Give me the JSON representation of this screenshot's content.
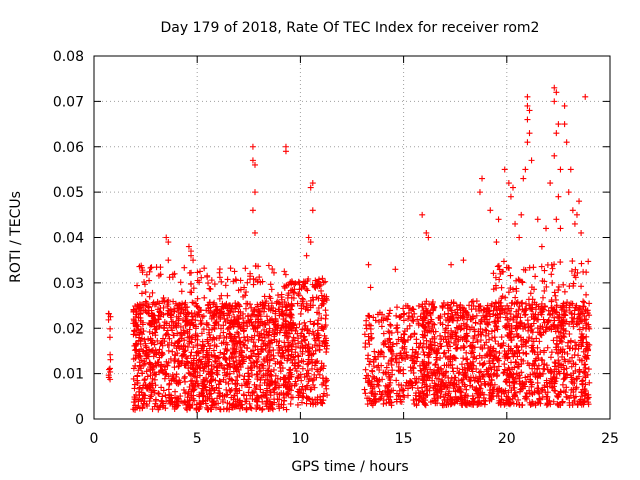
{
  "chart_data": {
    "type": "scatter",
    "title": "Day 179 of 2018, Rate Of TEC Index for receiver rom2",
    "xlabel": "GPS time / hours",
    "ylabel": "ROTI / TECUs",
    "xlim": [
      0,
      25
    ],
    "ylim": [
      0,
      0.08
    ],
    "grid": true,
    "marker": "+",
    "marker_color": "#ff0000",
    "x_ticks": [
      {
        "value": 0,
        "label": "0"
      },
      {
        "value": 5,
        "label": "5"
      },
      {
        "value": 10,
        "label": "10"
      },
      {
        "value": 15,
        "label": "15"
      },
      {
        "value": 20,
        "label": "20"
      },
      {
        "value": 25,
        "label": "25"
      }
    ],
    "y_ticks": [
      {
        "value": 0,
        "label": "0"
      },
      {
        "value": 0.01,
        "label": "0.01"
      },
      {
        "value": 0.02,
        "label": "0.02"
      },
      {
        "value": 0.03,
        "label": "0.03"
      },
      {
        "value": 0.04,
        "label": "0.04"
      },
      {
        "value": 0.05,
        "label": "0.05"
      },
      {
        "value": 0.06,
        "label": "0.06"
      },
      {
        "value": 0.07,
        "label": "0.07"
      },
      {
        "value": 0.08,
        "label": "0.08"
      }
    ],
    "series": [
      {
        "name": "ROTI",
        "description": "dense clusters of ROTI samples per time block",
        "clusters": [
          {
            "x": [
              0.7,
              0.8
            ],
            "y": [
              0.007,
              0.026
            ],
            "n": 14
          },
          {
            "x": [
              1.9,
              9.6
            ],
            "y": [
              0.002,
              0.026
            ],
            "n": 1400
          },
          {
            "x": [
              2.0,
              9.6
            ],
            "y": [
              0.02,
              0.034
            ],
            "n": 220
          },
          {
            "x": [
              9.4,
              11.3
            ],
            "y": [
              0.003,
              0.031
            ],
            "n": 320
          },
          {
            "x": [
              13.1,
              14.5
            ],
            "y": [
              0.003,
              0.024
            ],
            "n": 170
          },
          {
            "x": [
              14.6,
              16.0
            ],
            "y": [
              0.003,
              0.025
            ],
            "n": 170
          },
          {
            "x": [
              15.9,
              18.9
            ],
            "y": [
              0.003,
              0.026
            ],
            "n": 560
          },
          {
            "x": [
              18.9,
              24.0
            ],
            "y": [
              0.003,
              0.026
            ],
            "n": 800
          },
          {
            "x": [
              19.0,
              24.0
            ],
            "y": [
              0.02,
              0.035
            ],
            "n": 160
          }
        ],
        "outliers": [
          {
            "x": 3.5,
            "y": 0.04
          },
          {
            "x": 3.6,
            "y": 0.039
          },
          {
            "x": 3.6,
            "y": 0.035
          },
          {
            "x": 4.6,
            "y": 0.038
          },
          {
            "x": 4.7,
            "y": 0.037
          },
          {
            "x": 4.7,
            "y": 0.036
          },
          {
            "x": 4.8,
            "y": 0.035
          },
          {
            "x": 7.7,
            "y": 0.06
          },
          {
            "x": 7.7,
            "y": 0.057
          },
          {
            "x": 7.8,
            "y": 0.056
          },
          {
            "x": 7.8,
            "y": 0.05
          },
          {
            "x": 7.7,
            "y": 0.046
          },
          {
            "x": 7.8,
            "y": 0.041
          },
          {
            "x": 9.3,
            "y": 0.06
          },
          {
            "x": 9.3,
            "y": 0.059
          },
          {
            "x": 10.6,
            "y": 0.052
          },
          {
            "x": 10.5,
            "y": 0.051
          },
          {
            "x": 10.6,
            "y": 0.046
          },
          {
            "x": 10.4,
            "y": 0.04
          },
          {
            "x": 10.5,
            "y": 0.039
          },
          {
            "x": 10.3,
            "y": 0.036
          },
          {
            "x": 13.3,
            "y": 0.034
          },
          {
            "x": 13.4,
            "y": 0.029
          },
          {
            "x": 14.6,
            "y": 0.033
          },
          {
            "x": 15.9,
            "y": 0.045
          },
          {
            "x": 16.1,
            "y": 0.041
          },
          {
            "x": 16.2,
            "y": 0.04
          },
          {
            "x": 17.3,
            "y": 0.034
          },
          {
            "x": 17.9,
            "y": 0.035
          },
          {
            "x": 18.8,
            "y": 0.053
          },
          {
            "x": 18.7,
            "y": 0.05
          },
          {
            "x": 19.2,
            "y": 0.046
          },
          {
            "x": 19.6,
            "y": 0.044
          },
          {
            "x": 19.5,
            "y": 0.039
          },
          {
            "x": 19.9,
            "y": 0.055
          },
          {
            "x": 20.1,
            "y": 0.052
          },
          {
            "x": 20.2,
            "y": 0.049
          },
          {
            "x": 20.3,
            "y": 0.051
          },
          {
            "x": 20.4,
            "y": 0.043
          },
          {
            "x": 20.6,
            "y": 0.04
          },
          {
            "x": 20.7,
            "y": 0.045
          },
          {
            "x": 20.8,
            "y": 0.053
          },
          {
            "x": 20.9,
            "y": 0.055
          },
          {
            "x": 21.0,
            "y": 0.071
          },
          {
            "x": 21.0,
            "y": 0.069
          },
          {
            "x": 21.1,
            "y": 0.068
          },
          {
            "x": 21.0,
            "y": 0.066
          },
          {
            "x": 21.1,
            "y": 0.063
          },
          {
            "x": 21.0,
            "y": 0.061
          },
          {
            "x": 21.2,
            "y": 0.057
          },
          {
            "x": 21.5,
            "y": 0.044
          },
          {
            "x": 21.7,
            "y": 0.038
          },
          {
            "x": 21.9,
            "y": 0.042
          },
          {
            "x": 22.1,
            "y": 0.052
          },
          {
            "x": 22.3,
            "y": 0.073
          },
          {
            "x": 22.4,
            "y": 0.072
          },
          {
            "x": 22.3,
            "y": 0.07
          },
          {
            "x": 22.5,
            "y": 0.065
          },
          {
            "x": 22.4,
            "y": 0.063
          },
          {
            "x": 22.3,
            "y": 0.058
          },
          {
            "x": 22.6,
            "y": 0.055
          },
          {
            "x": 22.5,
            "y": 0.049
          },
          {
            "x": 22.4,
            "y": 0.044
          },
          {
            "x": 22.6,
            "y": 0.042
          },
          {
            "x": 22.8,
            "y": 0.069
          },
          {
            "x": 22.8,
            "y": 0.065
          },
          {
            "x": 22.9,
            "y": 0.061
          },
          {
            "x": 23.1,
            "y": 0.055
          },
          {
            "x": 23.0,
            "y": 0.05
          },
          {
            "x": 23.2,
            "y": 0.046
          },
          {
            "x": 23.4,
            "y": 0.045
          },
          {
            "x": 23.5,
            "y": 0.048
          },
          {
            "x": 23.3,
            "y": 0.043
          },
          {
            "x": 23.6,
            "y": 0.041
          },
          {
            "x": 23.8,
            "y": 0.071
          }
        ]
      }
    ]
  }
}
